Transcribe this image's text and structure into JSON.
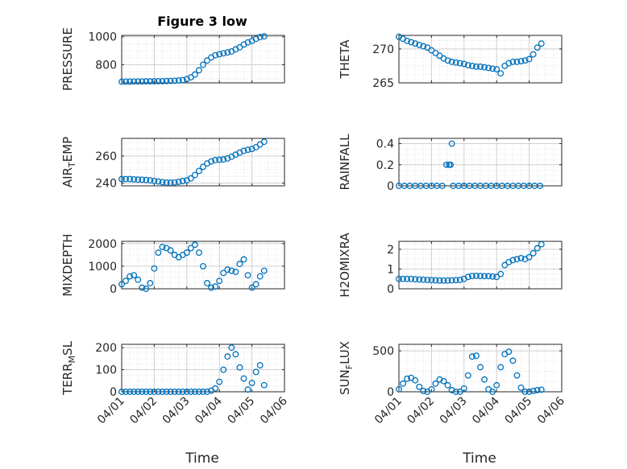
{
  "figure": {
    "title": "Figure 3 low",
    "marker_color": "#0072BD",
    "axis_color": "#262626",
    "grid_color": "#dcdcdc",
    "xlabel": "Time",
    "x_ticks": [
      "04/01",
      "04/02",
      "04/03",
      "04/04",
      "04/05",
      "04/06"
    ]
  },
  "chart_data": [
    {
      "type": "scatter",
      "ylabel": "PRESSURE",
      "ylim": [
        670,
        1010
      ],
      "yticks": [
        800,
        1000
      ],
      "xlim": [
        "04/01",
        "04/06"
      ],
      "grid": true,
      "points": [
        [
          "04/01 00:00",
          678
        ],
        [
          "04/01 03:00",
          679
        ],
        [
          "04/01 06:00",
          679
        ],
        [
          "04/01 09:00",
          680
        ],
        [
          "04/01 12:00",
          680
        ],
        [
          "04/01 15:00",
          680
        ],
        [
          "04/01 18:00",
          681
        ],
        [
          "04/01 21:00",
          681
        ],
        [
          "04/02 00:00",
          681
        ],
        [
          "04/02 03:00",
          682
        ],
        [
          "04/02 06:00",
          682
        ],
        [
          "04/02 09:00",
          683
        ],
        [
          "04/02 12:00",
          684
        ],
        [
          "04/02 15:00",
          685
        ],
        [
          "04/02 18:00",
          687
        ],
        [
          "04/02 21:00",
          690
        ],
        [
          "04/03 00:00",
          697
        ],
        [
          "04/03 03:00",
          710
        ],
        [
          "04/03 06:00",
          730
        ],
        [
          "04/03 09:00",
          760
        ],
        [
          "04/03 12:00",
          800
        ],
        [
          "04/03 15:00",
          830
        ],
        [
          "04/03 18:00",
          852
        ],
        [
          "04/03 21:00",
          868
        ],
        [
          "04/04 00:00",
          875
        ],
        [
          "04/04 03:00",
          882
        ],
        [
          "04/04 06:00",
          888
        ],
        [
          "04/04 09:00",
          895
        ],
        [
          "04/04 12:00",
          910
        ],
        [
          "04/04 15:00",
          925
        ],
        [
          "04/04 18:00",
          945
        ],
        [
          "04/04 21:00",
          960
        ],
        [
          "04/05 00:00",
          970
        ],
        [
          "04/05 03:00",
          985
        ],
        [
          "04/05 06:00",
          998
        ],
        [
          "04/05 09:00",
          1003
        ]
      ]
    },
    {
      "type": "scatter",
      "ylabel": "THETA",
      "ylim": [
        265,
        272
      ],
      "yticks": [
        265,
        270
      ],
      "xlim": [
        "04/01",
        "04/06"
      ],
      "grid": true,
      "points": [
        [
          "04/01 00:00",
          271.8
        ],
        [
          "04/01 03:00",
          271.5
        ],
        [
          "04/01 06:00",
          271.2
        ],
        [
          "04/01 09:00",
          271.0
        ],
        [
          "04/01 12:00",
          270.8
        ],
        [
          "04/01 15:00",
          270.6
        ],
        [
          "04/01 18:00",
          270.4
        ],
        [
          "04/01 21:00",
          270.2
        ],
        [
          "04/02 00:00",
          269.8
        ],
        [
          "04/02 03:00",
          269.4
        ],
        [
          "04/02 06:00",
          269.0
        ],
        [
          "04/02 09:00",
          268.6
        ],
        [
          "04/02 12:00",
          268.3
        ],
        [
          "04/02 15:00",
          268.1
        ],
        [
          "04/02 18:00",
          268.0
        ],
        [
          "04/02 21:00",
          267.9
        ],
        [
          "04/03 00:00",
          267.8
        ],
        [
          "04/03 03:00",
          267.6
        ],
        [
          "04/03 06:00",
          267.5
        ],
        [
          "04/03 09:00",
          267.4
        ],
        [
          "04/03 12:00",
          267.4
        ],
        [
          "04/03 15:00",
          267.3
        ],
        [
          "04/03 18:00",
          267.2
        ],
        [
          "04/03 21:00",
          267.1
        ],
        [
          "04/04 00:00",
          267.0
        ],
        [
          "04/04 03:00",
          266.4
        ],
        [
          "04/04 06:00",
          267.5
        ],
        [
          "04/04 09:00",
          267.9
        ],
        [
          "04/04 12:00",
          268.1
        ],
        [
          "04/04 15:00",
          268.1
        ],
        [
          "04/04 18:00",
          268.2
        ],
        [
          "04/04 21:00",
          268.3
        ],
        [
          "04/05 00:00",
          268.5
        ],
        [
          "04/05 03:00",
          269.2
        ],
        [
          "04/05 06:00",
          270.2
        ],
        [
          "04/05 09:00",
          270.8
        ]
      ]
    },
    {
      "type": "scatter",
      "ylabel": "AIR_TEMP",
      "ylim": [
        238,
        273
      ],
      "yticks": [
        240,
        260
      ],
      "xlim": [
        "04/01",
        "04/06"
      ],
      "grid": true,
      "points": [
        [
          "04/01 00:00",
          243
        ],
        [
          "04/01 03:00",
          243
        ],
        [
          "04/01 06:00",
          243
        ],
        [
          "04/01 09:00",
          242.8
        ],
        [
          "04/01 12:00",
          242.6
        ],
        [
          "04/01 15:00",
          242.5
        ],
        [
          "04/01 18:00",
          242.3
        ],
        [
          "04/01 21:00",
          242.0
        ],
        [
          "04/02 00:00",
          241.6
        ],
        [
          "04/02 03:00",
          241.2
        ],
        [
          "04/02 06:00",
          240.7
        ],
        [
          "04/02 09:00",
          240.4
        ],
        [
          "04/02 12:00",
          240.3
        ],
        [
          "04/02 15:00",
          240.5
        ],
        [
          "04/02 18:00",
          240.9
        ],
        [
          "04/02 21:00",
          241.5
        ],
        [
          "04/03 00:00",
          242
        ],
        [
          "04/03 03:00",
          243.5
        ],
        [
          "04/03 06:00",
          246
        ],
        [
          "04/03 09:00",
          249
        ],
        [
          "04/03 12:00",
          252
        ],
        [
          "04/03 15:00",
          254.5
        ],
        [
          "04/03 18:00",
          256
        ],
        [
          "04/03 21:00",
          257
        ],
        [
          "04/04 00:00",
          257.2
        ],
        [
          "04/04 03:00",
          257.5
        ],
        [
          "04/04 06:00",
          258.2
        ],
        [
          "04/04 09:00",
          259.5
        ],
        [
          "04/04 12:00",
          261
        ],
        [
          "04/04 15:00",
          262.5
        ],
        [
          "04/04 18:00",
          263.8
        ],
        [
          "04/04 21:00",
          264.6
        ],
        [
          "04/05 00:00",
          265.2
        ],
        [
          "04/05 03:00",
          266.5
        ],
        [
          "04/05 06:00",
          268.5
        ],
        [
          "04/05 09:00",
          270.5
        ]
      ]
    },
    {
      "type": "scatter",
      "ylabel": "RAINFALL",
      "ylim": [
        0,
        0.45
      ],
      "yticks": [
        0,
        0.2,
        0.4
      ],
      "xlim": [
        "04/01",
        "04/06"
      ],
      "grid": true,
      "points": [
        [
          "04/01 00:00",
          0
        ],
        [
          "04/01 04:00",
          0
        ],
        [
          "04/01 08:00",
          0
        ],
        [
          "04/01 12:00",
          0
        ],
        [
          "04/01 16:00",
          0
        ],
        [
          "04/01 20:00",
          0
        ],
        [
          "04/02 00:00",
          0
        ],
        [
          "04/02 04:00",
          0
        ],
        [
          "04/02 08:00",
          0
        ],
        [
          "04/02 11:00",
          0.2
        ],
        [
          "04/02 13:00",
          0.2
        ],
        [
          "04/02 14:00",
          0.2
        ],
        [
          "04/02 15:00",
          0.4
        ],
        [
          "04/02 16:00",
          0
        ],
        [
          "04/02 20:00",
          0
        ],
        [
          "04/03 00:00",
          0
        ],
        [
          "04/03 04:00",
          0
        ],
        [
          "04/03 08:00",
          0
        ],
        [
          "04/03 12:00",
          0
        ],
        [
          "04/03 16:00",
          0
        ],
        [
          "04/03 20:00",
          0
        ],
        [
          "04/04 00:00",
          0
        ],
        [
          "04/04 04:00",
          0
        ],
        [
          "04/04 08:00",
          0
        ],
        [
          "04/04 12:00",
          0
        ],
        [
          "04/04 16:00",
          0
        ],
        [
          "04/04 20:00",
          0
        ],
        [
          "04/05 00:00",
          0
        ],
        [
          "04/05 04:00",
          0
        ],
        [
          "04/05 08:00",
          0
        ]
      ]
    },
    {
      "type": "scatter",
      "ylabel": "MIXDEPTH",
      "ylim": [
        0,
        2100
      ],
      "yticks": [
        0,
        1000,
        2000
      ],
      "xlim": [
        "04/01",
        "04/06"
      ],
      "grid": true,
      "points": [
        [
          "04/01 00:00",
          200
        ],
        [
          "04/01 03:00",
          350
        ],
        [
          "04/01 06:00",
          550
        ],
        [
          "04/01 09:00",
          600
        ],
        [
          "04/01 12:00",
          400
        ],
        [
          "04/01 15:00",
          50
        ],
        [
          "04/01 18:00",
          0
        ],
        [
          "04/01 21:00",
          250
        ],
        [
          "04/02 00:00",
          900
        ],
        [
          "04/02 03:00",
          1600
        ],
        [
          "04/02 06:00",
          1850
        ],
        [
          "04/02 09:00",
          1800
        ],
        [
          "04/02 12:00",
          1700
        ],
        [
          "04/02 15:00",
          1500
        ],
        [
          "04/02 18:00",
          1400
        ],
        [
          "04/02 21:00",
          1500
        ],
        [
          "04/03 00:00",
          1600
        ],
        [
          "04/03 03:00",
          1800
        ],
        [
          "04/03 06:00",
          1950
        ],
        [
          "04/03 09:00",
          1600
        ],
        [
          "04/03 12:00",
          1000
        ],
        [
          "04/03 15:00",
          250
        ],
        [
          "04/03 18:00",
          50
        ],
        [
          "04/03 21:00",
          100
        ],
        [
          "04/04 00:00",
          350
        ],
        [
          "04/04 03:00",
          700
        ],
        [
          "04/04 06:00",
          850
        ],
        [
          "04/04 09:00",
          800
        ],
        [
          "04/04 12:00",
          750
        ],
        [
          "04/04 15:00",
          1100
        ],
        [
          "04/04 18:00",
          1300
        ],
        [
          "04/04 21:00",
          600
        ],
        [
          "04/05 00:00",
          50
        ],
        [
          "04/05 03:00",
          200
        ],
        [
          "04/05 06:00",
          550
        ],
        [
          "04/05 09:00",
          800
        ]
      ]
    },
    {
      "type": "scatter",
      "ylabel": "H2OMIXRA",
      "ylim": [
        0,
        2.4
      ],
      "yticks": [
        0,
        1,
        2
      ],
      "xlim": [
        "04/01",
        "04/06"
      ],
      "grid": true,
      "points": [
        [
          "04/01 00:00",
          0.5
        ],
        [
          "04/01 03:00",
          0.5
        ],
        [
          "04/01 06:00",
          0.5
        ],
        [
          "04/01 09:00",
          0.5
        ],
        [
          "04/01 12:00",
          0.48
        ],
        [
          "04/01 15:00",
          0.47
        ],
        [
          "04/01 18:00",
          0.46
        ],
        [
          "04/01 21:00",
          0.45
        ],
        [
          "04/02 00:00",
          0.44
        ],
        [
          "04/02 03:00",
          0.43
        ],
        [
          "04/02 06:00",
          0.42
        ],
        [
          "04/02 09:00",
          0.42
        ],
        [
          "04/02 12:00",
          0.42
        ],
        [
          "04/02 15:00",
          0.43
        ],
        [
          "04/02 18:00",
          0.44
        ],
        [
          "04/02 21:00",
          0.45
        ],
        [
          "04/03 00:00",
          0.5
        ],
        [
          "04/03 03:00",
          0.6
        ],
        [
          "04/03 06:00",
          0.65
        ],
        [
          "04/03 09:00",
          0.66
        ],
        [
          "04/03 12:00",
          0.65
        ],
        [
          "04/03 15:00",
          0.64
        ],
        [
          "04/03 18:00",
          0.64
        ],
        [
          "04/03 21:00",
          0.62
        ],
        [
          "04/04 00:00",
          0.6
        ],
        [
          "04/04 03:00",
          0.75
        ],
        [
          "04/04 06:00",
          1.2
        ],
        [
          "04/04 09:00",
          1.35
        ],
        [
          "04/04 12:00",
          1.45
        ],
        [
          "04/04 15:00",
          1.5
        ],
        [
          "04/04 18:00",
          1.55
        ],
        [
          "04/04 21:00",
          1.5
        ],
        [
          "04/05 00:00",
          1.6
        ],
        [
          "04/05 03:00",
          1.8
        ],
        [
          "04/05 06:00",
          2.05
        ],
        [
          "04/05 09:00",
          2.25
        ]
      ]
    },
    {
      "type": "scatter",
      "ylabel": "TERR_MSL",
      "ylim": [
        0,
        215
      ],
      "yticks": [
        0,
        100,
        200
      ],
      "xlim": [
        "04/01",
        "04/06"
      ],
      "grid": true,
      "points": [
        [
          "04/01 00:00",
          0
        ],
        [
          "04/01 03:00",
          0
        ],
        [
          "04/01 06:00",
          0
        ],
        [
          "04/01 09:00",
          0
        ],
        [
          "04/01 12:00",
          0
        ],
        [
          "04/01 15:00",
          0
        ],
        [
          "04/01 18:00",
          0
        ],
        [
          "04/01 21:00",
          0
        ],
        [
          "04/02 00:00",
          0
        ],
        [
          "04/02 03:00",
          0
        ],
        [
          "04/02 06:00",
          0
        ],
        [
          "04/02 09:00",
          0
        ],
        [
          "04/02 12:00",
          0
        ],
        [
          "04/02 15:00",
          0
        ],
        [
          "04/02 18:00",
          0
        ],
        [
          "04/02 21:00",
          0
        ],
        [
          "04/03 00:00",
          0
        ],
        [
          "04/03 03:00",
          0
        ],
        [
          "04/03 06:00",
          0
        ],
        [
          "04/03 09:00",
          0
        ],
        [
          "04/03 12:00",
          0
        ],
        [
          "04/03 15:00",
          0
        ],
        [
          "04/03 18:00",
          5
        ],
        [
          "04/03 21:00",
          15
        ],
        [
          "04/04 00:00",
          45
        ],
        [
          "04/04 03:00",
          100
        ],
        [
          "04/04 06:00",
          160
        ],
        [
          "04/04 09:00",
          200
        ],
        [
          "04/04 12:00",
          170
        ],
        [
          "04/04 15:00",
          110
        ],
        [
          "04/04 18:00",
          60
        ],
        [
          "04/04 21:00",
          10
        ],
        [
          "04/05 00:00",
          40
        ],
        [
          "04/05 03:00",
          90
        ],
        [
          "04/05 06:00",
          120
        ],
        [
          "04/05 09:00",
          30
        ]
      ]
    },
    {
      "type": "scatter",
      "ylabel": "SUN_FLUX",
      "ylim": [
        0,
        580
      ],
      "yticks": [
        0,
        500
      ],
      "xlim": [
        "04/01",
        "04/06"
      ],
      "grid": true,
      "points": [
        [
          "04/01 00:00",
          30
        ],
        [
          "04/01 03:00",
          100
        ],
        [
          "04/01 06:00",
          160
        ],
        [
          "04/01 09:00",
          170
        ],
        [
          "04/01 12:00",
          140
        ],
        [
          "04/01 15:00",
          60
        ],
        [
          "04/01 18:00",
          10
        ],
        [
          "04/01 21:00",
          0
        ],
        [
          "04/02 00:00",
          30
        ],
        [
          "04/02 03:00",
          100
        ],
        [
          "04/02 06:00",
          150
        ],
        [
          "04/02 09:00",
          130
        ],
        [
          "04/02 12:00",
          80
        ],
        [
          "04/02 15:00",
          20
        ],
        [
          "04/02 18:00",
          0
        ],
        [
          "04/02 21:00",
          0
        ],
        [
          "04/03 00:00",
          40
        ],
        [
          "04/03 03:00",
          200
        ],
        [
          "04/03 06:00",
          430
        ],
        [
          "04/03 09:00",
          440
        ],
        [
          "04/03 12:00",
          300
        ],
        [
          "04/03 15:00",
          150
        ],
        [
          "04/03 18:00",
          30
        ],
        [
          "04/03 21:00",
          0
        ],
        [
          "04/04 00:00",
          80
        ],
        [
          "04/04 03:00",
          300
        ],
        [
          "04/04 06:00",
          460
        ],
        [
          "04/04 09:00",
          490
        ],
        [
          "04/04 12:00",
          380
        ],
        [
          "04/04 15:00",
          200
        ],
        [
          "04/04 18:00",
          50
        ],
        [
          "04/04 21:00",
          0
        ],
        [
          "04/05 00:00",
          0
        ],
        [
          "04/05 03:00",
          10
        ],
        [
          "04/05 06:00",
          20
        ],
        [
          "04/05 09:00",
          25
        ]
      ]
    }
  ]
}
